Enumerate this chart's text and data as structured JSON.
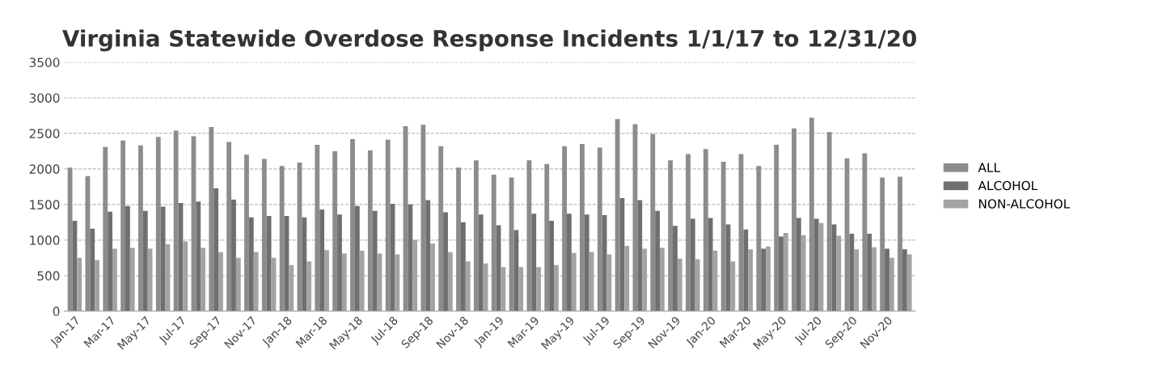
{
  "chart_data": {
    "type": "bar",
    "title": "Virginia Statewide Overdose Response Incidents 1/1/17 to 12/31/20",
    "categories": [
      "Jan-17",
      null,
      "Mar-17",
      null,
      "May-17",
      null,
      "Jul-17",
      null,
      "Sep-17",
      null,
      "Nov-17",
      null,
      "Jan-18",
      null,
      "Mar-18",
      null,
      "May-18",
      null,
      "Jul-18",
      null,
      "Sep-18",
      null,
      "Nov-18",
      null,
      "Jan-19",
      null,
      "Mar-19",
      null,
      "May-19",
      null,
      "Jul-19",
      null,
      "Sep-19",
      null,
      "Nov-19",
      null,
      "Jan-20",
      null,
      "Mar-20",
      null,
      "May-20",
      null,
      "Jul-20",
      null,
      "Sep-20",
      null,
      "Nov-20",
      null
    ],
    "series": [
      {
        "name": "ALL",
        "color": "#8c8c8c",
        "values": [
          2020,
          1900,
          2310,
          2400,
          2330,
          2450,
          2540,
          2460,
          2590,
          2380,
          2200,
          2140,
          2040,
          2090,
          2340,
          2250,
          2420,
          2260,
          2410,
          2600,
          2620,
          2320,
          2020,
          2120,
          1920,
          1880,
          2120,
          2070,
          2320,
          2350,
          2300,
          2700,
          2630,
          2490,
          2120,
          2210,
          2280,
          2100,
          2210,
          2040,
          2340,
          2570,
          2720,
          2520,
          2150,
          2220,
          1880,
          1890
        ]
      },
      {
        "name": "ALCOHOL",
        "color": "#6f6f6f",
        "values": [
          1270,
          1160,
          1400,
          1480,
          1410,
          1470,
          1520,
          1540,
          1730,
          1570,
          1320,
          1340,
          1340,
          1320,
          1430,
          1360,
          1480,
          1410,
          1510,
          1500,
          1560,
          1390,
          1250,
          1360,
          1210,
          1140,
          1370,
          1270,
          1370,
          1360,
          1350,
          1590,
          1560,
          1410,
          1200,
          1300,
          1310,
          1220,
          1150,
          880,
          1050,
          1310,
          1300,
          1220,
          1090,
          1090,
          880,
          870
        ]
      },
      {
        "name": "NON-ALCOHOL",
        "color": "#a3a3a3",
        "values": [
          750,
          720,
          880,
          890,
          880,
          940,
          980,
          890,
          830,
          750,
          830,
          750,
          650,
          700,
          860,
          810,
          850,
          810,
          800,
          1000,
          950,
          830,
          700,
          670,
          620,
          620,
          620,
          650,
          820,
          830,
          800,
          920,
          880,
          890,
          740,
          730,
          850,
          700,
          870,
          910,
          1100,
          1070,
          1240,
          1060,
          870,
          900,
          750,
          800
        ]
      }
    ],
    "ylim": [
      0,
      3500
    ],
    "yticks": [
      0,
      500,
      1000,
      1500,
      2000,
      2500,
      3000,
      3500
    ],
    "grid": "y",
    "legend": "right"
  }
}
